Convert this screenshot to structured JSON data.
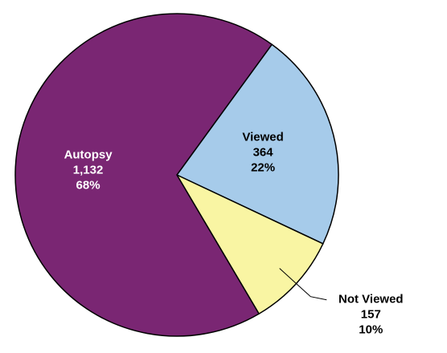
{
  "chart_data": {
    "type": "pie",
    "categories": [
      "Viewed",
      "Not Viewed",
      "Autopsy"
    ],
    "values": [
      364,
      157,
      1132
    ],
    "value_labels": [
      "364",
      "157",
      "1,132"
    ],
    "percent_labels": [
      "22%",
      "10%",
      "68%"
    ],
    "colors": [
      "#a6cbea",
      "#f9f5a3",
      "#7a2673"
    ],
    "label_colors": [
      "#000000",
      "#000000",
      "#ffffff"
    ]
  }
}
